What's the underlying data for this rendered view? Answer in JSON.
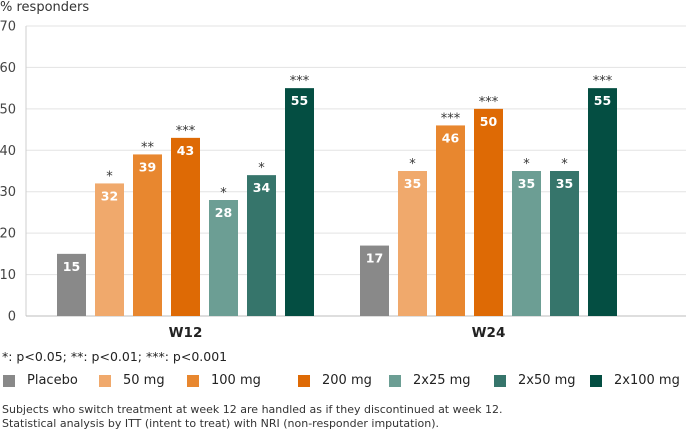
{
  "chart_data": {
    "type": "bar",
    "ylabel": "% responders",
    "ylim": [
      0,
      70
    ],
    "yticks": [
      0,
      10,
      20,
      30,
      40,
      50,
      60,
      70
    ],
    "categories": [
      "W12",
      "W24"
    ],
    "series": [
      {
        "name": "Placebo",
        "color": "#898989",
        "values": [
          15,
          17
        ],
        "significance": [
          "",
          ""
        ]
      },
      {
        "name": "50 mg",
        "color": "#f0a96c",
        "values": [
          32,
          35
        ],
        "significance": [
          "*",
          "*"
        ]
      },
      {
        "name": "100 mg",
        "color": "#e8872f",
        "values": [
          39,
          46
        ],
        "significance": [
          "**",
          "***"
        ]
      },
      {
        "name": "200 mg",
        "color": "#de6a05",
        "values": [
          43,
          50
        ],
        "significance": [
          "***",
          "***"
        ]
      },
      {
        "name": "2x25 mg",
        "color": "#6c9e94",
        "values": [
          28,
          35
        ],
        "significance": [
          "*",
          "*"
        ]
      },
      {
        "name": "2x50 mg",
        "color": "#36756b",
        "values": [
          34,
          35
        ],
        "significance": [
          "*",
          "*"
        ]
      },
      {
        "name": "2x100 mg",
        "color": "#044e42",
        "values": [
          55,
          55
        ],
        "significance": [
          "***",
          "***"
        ]
      }
    ]
  },
  "significance_note": "*: p<0.05; **: p<0.01; ***: p<0.001",
  "footnotes": [
    "Subjects who switch treatment at week 12 are handled as if they discontinued at week 12.",
    "Statistical analysis by ITT (intent to treat) with NRI (non-responder imputation)."
  ]
}
